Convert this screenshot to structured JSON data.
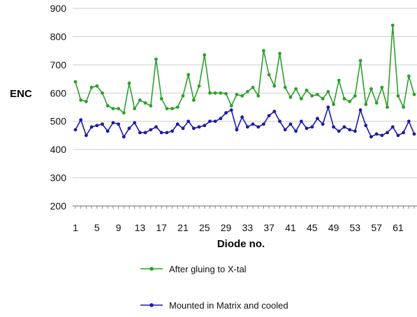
{
  "chart_data": {
    "type": "line",
    "xlabel": "Diode no.",
    "ylabel": "ENC",
    "ylim": [
      200,
      900
    ],
    "yticks": [
      200,
      300,
      400,
      500,
      600,
      700,
      800,
      900
    ],
    "x": [
      1,
      2,
      3,
      4,
      5,
      6,
      7,
      8,
      9,
      10,
      11,
      12,
      13,
      14,
      15,
      16,
      17,
      18,
      19,
      20,
      21,
      22,
      23,
      24,
      25,
      26,
      27,
      28,
      29,
      30,
      31,
      32,
      33,
      34,
      35,
      36,
      37,
      38,
      39,
      40,
      41,
      42,
      43,
      44,
      45,
      46,
      47,
      48,
      49,
      50,
      51,
      52,
      53,
      54,
      55,
      56,
      57,
      58,
      59,
      60,
      61,
      62,
      63,
      64
    ],
    "xticks": [
      1,
      5,
      9,
      13,
      17,
      21,
      25,
      29,
      33,
      37,
      41,
      45,
      49,
      53,
      57,
      61
    ],
    "grid": true,
    "legend_position": "bottom",
    "series": [
      {
        "name": "After gluing to X-tal",
        "color": "#2ca02c",
        "values": [
          640,
          575,
          570,
          620,
          625,
          600,
          555,
          545,
          545,
          530,
          635,
          545,
          575,
          565,
          555,
          720,
          580,
          545,
          545,
          550,
          590,
          665,
          575,
          625,
          735,
          600,
          600,
          600,
          598,
          555,
          595,
          590,
          605,
          620,
          590,
          750,
          665,
          625,
          740,
          620,
          585,
          615,
          580,
          610,
          590,
          595,
          580,
          605,
          560,
          645,
          580,
          570,
          590,
          715,
          560,
          615,
          565,
          620,
          550,
          840,
          590,
          550,
          660,
          595
        ]
      },
      {
        "name": "Mounted in Matrix and cooled",
        "color": "#1a1aaa",
        "values": [
          470,
          505,
          450,
          480,
          485,
          490,
          465,
          495,
          490,
          445,
          475,
          495,
          460,
          460,
          470,
          480,
          460,
          460,
          465,
          490,
          475,
          500,
          475,
          480,
          485,
          500,
          500,
          510,
          530,
          540,
          470,
          515,
          480,
          490,
          480,
          490,
          520,
          535,
          500,
          470,
          490,
          465,
          500,
          475,
          480,
          510,
          490,
          550,
          480,
          465,
          480,
          470,
          465,
          540,
          485,
          445,
          455,
          450,
          460,
          480,
          450,
          460,
          500,
          455
        ]
      }
    ]
  }
}
